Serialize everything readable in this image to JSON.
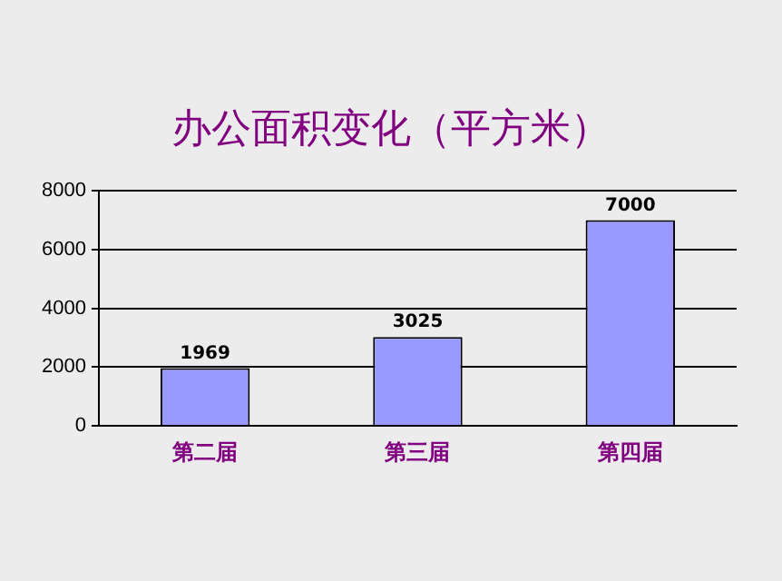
{
  "chart_data": {
    "type": "bar",
    "title": "办公面积变化（平方米）",
    "categories": [
      "第二届",
      "第三届",
      "第四届"
    ],
    "values": [
      1969,
      3025,
      7000
    ],
    "color": "#9999ff",
    "ylim": [
      0,
      8000
    ],
    "yticks": [
      0,
      2000,
      4000,
      6000,
      8000
    ],
    "grid": "y",
    "data_labels": true,
    "legend": false
  }
}
